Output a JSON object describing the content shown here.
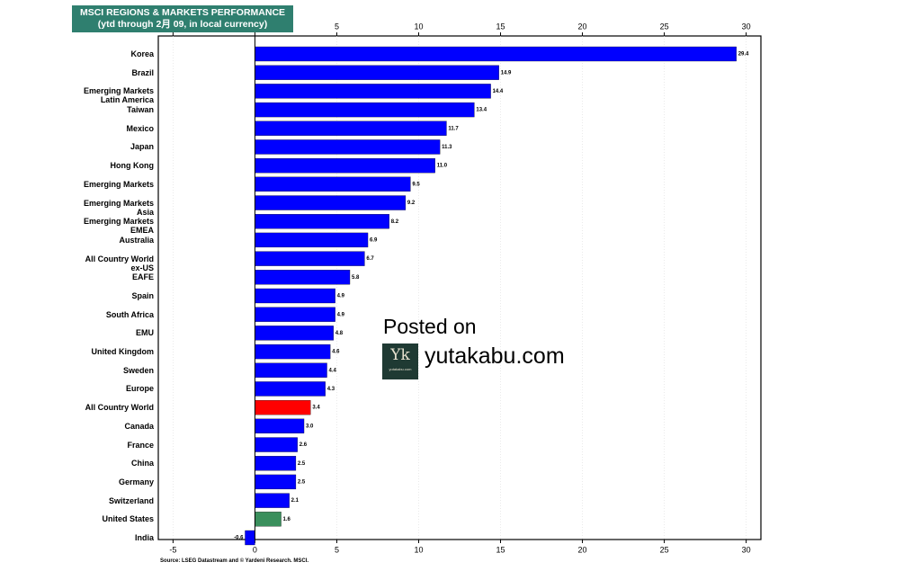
{
  "chart_data": {
    "type": "barh",
    "title": "MSCI REGIONS & MARKETS PERFORMANCE",
    "subtitle": "(ytd through 2月 09, in local currency)",
    "source": "Source: LSEG Datastream and © Yardeni Research. MSCI.",
    "categories": [
      "Korea",
      "Brazil",
      "Emerging Markets\nLatin America",
      "Taiwan",
      "Mexico",
      "Japan",
      "Hong Kong",
      "Emerging Markets",
      "Emerging Markets\nAsia",
      "Emerging Markets\nEMEA",
      "Australia",
      "All Country World\nex-US",
      "EAFE",
      "Spain",
      "South Africa",
      "EMU",
      "United Kingdom",
      "Sweden",
      "Europe",
      "All Country World",
      "Canada",
      "France",
      "China",
      "Germany",
      "Switzerland",
      "United States",
      "India"
    ],
    "values": [
      29.4,
      14.9,
      14.4,
      13.4,
      11.7,
      11.3,
      11.0,
      9.5,
      9.2,
      8.2,
      6.9,
      6.7,
      5.8,
      4.9,
      4.9,
      4.8,
      4.6,
      4.4,
      4.3,
      3.4,
      3.0,
      2.6,
      2.5,
      2.5,
      2.1,
      1.6,
      -0.6
    ],
    "value_labels": [
      "29.4",
      "14.9",
      "14.4",
      "13.4",
      "11.7",
      "11.3",
      "11.0",
      "9.5",
      "9.2",
      "8.2",
      "6.9",
      "6.7",
      "5.8",
      "4.9",
      "4.9",
      "4.8",
      "4.6",
      "4.4",
      "4.3",
      "3.4",
      "3.0",
      "2.6",
      "2.5",
      "2.5",
      "2.1",
      "1.6",
      "-0.6"
    ],
    "colors": [
      "#0000ff",
      "#0000ff",
      "#0000ff",
      "#0000ff",
      "#0000ff",
      "#0000ff",
      "#0000ff",
      "#0000ff",
      "#0000ff",
      "#0000ff",
      "#0000ff",
      "#0000ff",
      "#0000ff",
      "#0000ff",
      "#0000ff",
      "#0000ff",
      "#0000ff",
      "#0000ff",
      "#0000ff",
      "#ff0000",
      "#0000ff",
      "#0000ff",
      "#0000ff",
      "#0000ff",
      "#0000ff",
      "#3a8f5c",
      "#0000ff"
    ],
    "xlim": [
      -5.9,
      30.9
    ],
    "xticks": [
      -5,
      0,
      5,
      10,
      15,
      20,
      25,
      30
    ],
    "grid": true
  },
  "watermark": {
    "line1": "Posted on",
    "line2": "yutakabu.com",
    "logo_mark": "Yk",
    "logo_text": "yutakabu.com"
  }
}
